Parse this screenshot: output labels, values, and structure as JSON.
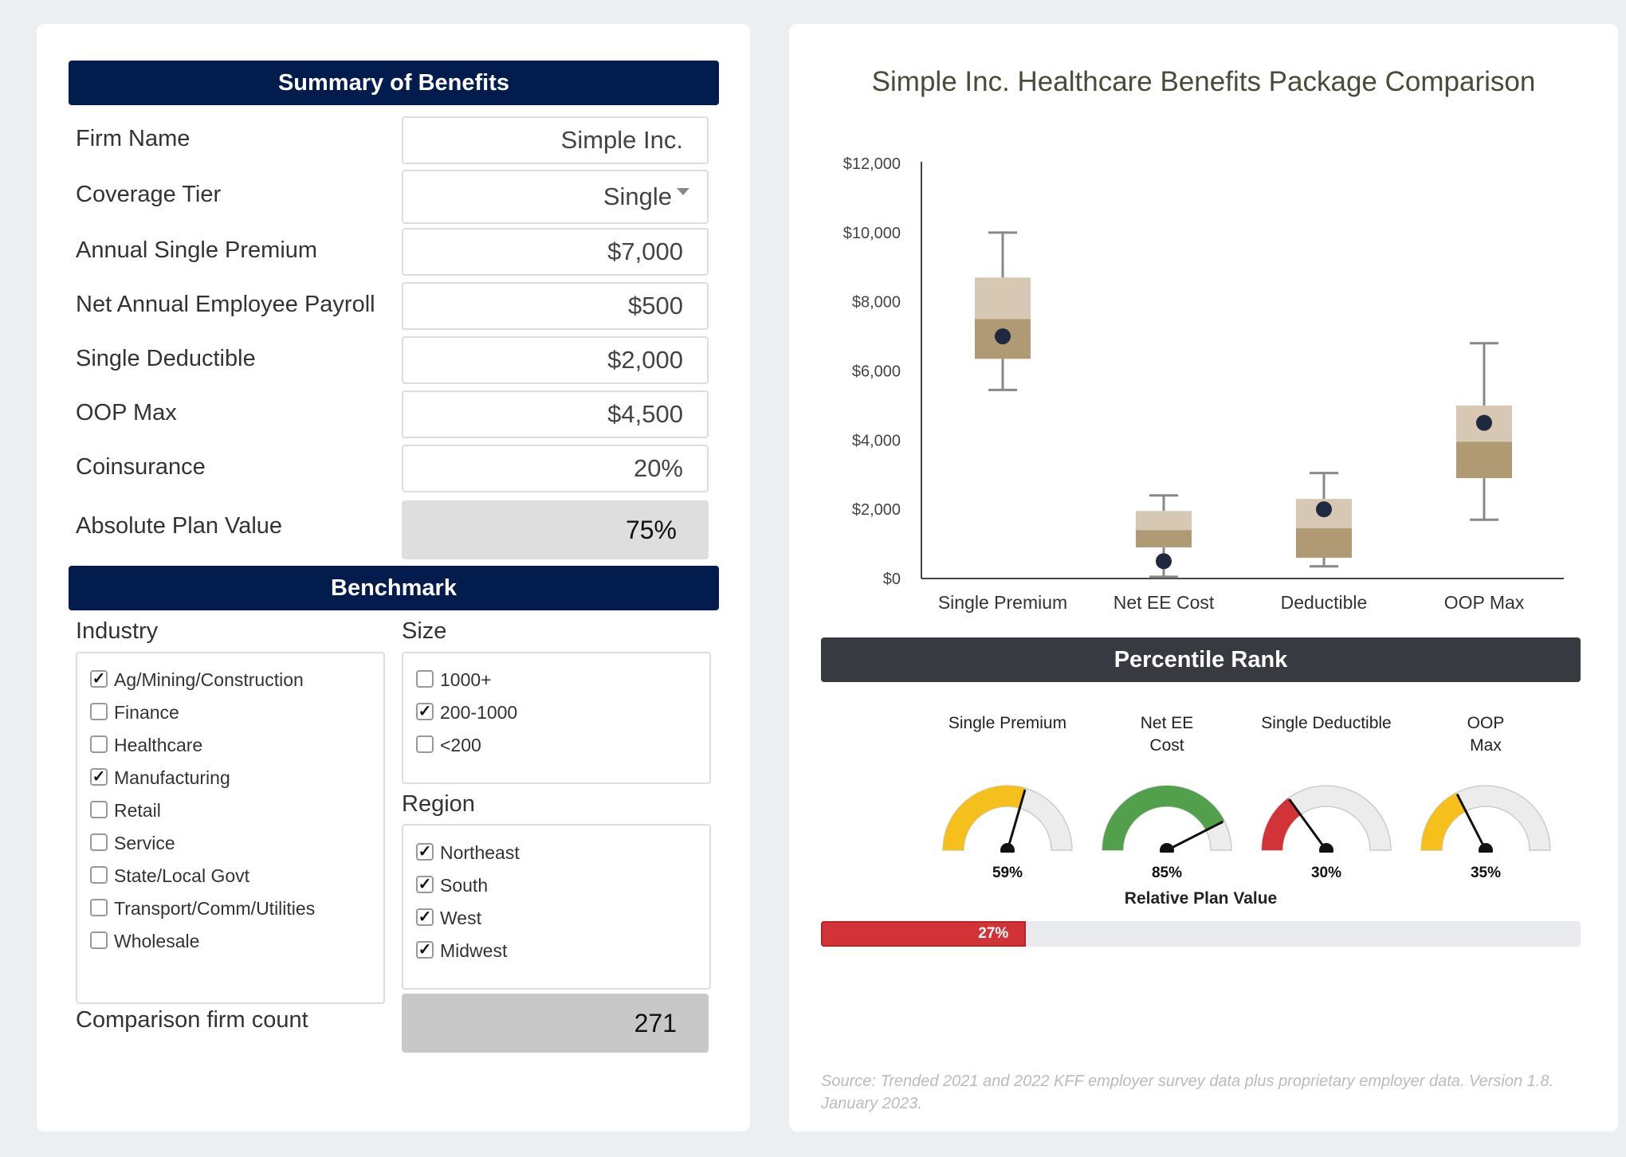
{
  "summary": {
    "header": "Summary of Benefits",
    "rows": [
      {
        "label": "Firm Name",
        "value": "Simple Inc."
      },
      {
        "label": "Coverage Tier",
        "value": "Single"
      },
      {
        "label": "Annual Single Premium",
        "value": "$7,000"
      },
      {
        "label": "Net Annual Employee Payroll",
        "value": "$500"
      },
      {
        "label": "Single Deductible",
        "value": "$2,000"
      },
      {
        "label": "OOP Max",
        "value": "$4,500"
      },
      {
        "label": "Coinsurance",
        "value": "20%"
      }
    ],
    "plan_value_label": "Absolute Plan Value",
    "plan_value": "75%"
  },
  "benchmark": {
    "header": "Benchmark",
    "industry_title": "Industry",
    "industries": [
      {
        "label": "Ag/Mining/Construction",
        "checked": true
      },
      {
        "label": "Finance",
        "checked": false
      },
      {
        "label": "Healthcare",
        "checked": false
      },
      {
        "label": "Manufacturing",
        "checked": true
      },
      {
        "label": "Retail",
        "checked": false
      },
      {
        "label": "Service",
        "checked": false
      },
      {
        "label": "State/Local Govt",
        "checked": false
      },
      {
        "label": "Transport/Comm/Utilities",
        "checked": false
      },
      {
        "label": "Wholesale",
        "checked": false
      }
    ],
    "size_title": "Size",
    "sizes": [
      {
        "label": "1000+",
        "checked": false
      },
      {
        "label": "200-1000",
        "checked": true
      },
      {
        "label": "<200",
        "checked": false
      }
    ],
    "region_title": "Region",
    "regions": [
      {
        "label": "Northeast",
        "checked": true
      },
      {
        "label": "South",
        "checked": true
      },
      {
        "label": "West",
        "checked": true
      },
      {
        "label": "Midwest",
        "checked": true
      }
    ],
    "count_label": "Comparison firm count",
    "count_value": "271"
  },
  "chart": {
    "title": "Simple Inc. Healthcare Benefits Package Comparison"
  },
  "chart_data": {
    "type": "box",
    "title": "Simple Inc. Healthcare Benefits Package Comparison",
    "categories": [
      "Single Premium",
      "Net EE Cost",
      "Deductible",
      "OOP Max"
    ],
    "y_ticks": [
      "$0",
      "$2,000",
      "$4,000",
      "$6,000",
      "$8,000",
      "$10,000",
      "$12,000"
    ],
    "ylim": [
      0,
      12000
    ],
    "boxes": [
      {
        "min": 5450,
        "q1": 6350,
        "median": 7500,
        "q3": 8700,
        "max": 10000,
        "firm": 7000
      },
      {
        "min": 50,
        "q1": 900,
        "median": 1400,
        "q3": 1950,
        "max": 2400,
        "firm": 500
      },
      {
        "min": 350,
        "q1": 600,
        "median": 1450,
        "q3": 2300,
        "max": 3050,
        "firm": 2000
      },
      {
        "min": 1700,
        "q1": 2900,
        "median": 3950,
        "q3": 5000,
        "max": 6800,
        "firm": 4500
      }
    ],
    "colors": {
      "lower": "#b09a74",
      "upper": "#d6c8b2",
      "whisker": "#888888",
      "firm_marker": "#1f2a40"
    }
  },
  "percentile": {
    "header": "Percentile Rank",
    "gauges": [
      {
        "label": "Single Premium",
        "value": 59,
        "display": "59%",
        "color": "#f5c01b"
      },
      {
        "label": "Net EE Cost",
        "value": 85,
        "display": "85%",
        "color": "#52a04b"
      },
      {
        "label": "Single Deductible",
        "value": 30,
        "display": "30%",
        "color": "#d23337"
      },
      {
        "label": "OOP Max",
        "value": 35,
        "display": "35%",
        "color": "#f5c01b"
      }
    ],
    "relative_label": "Relative Plan Value",
    "relative_value": 27,
    "relative_display": "27%"
  },
  "source_note": "Source: Trended 2021 and 2022 KFF employer survey data plus proprietary employer data. Version 1.8. January 2023."
}
